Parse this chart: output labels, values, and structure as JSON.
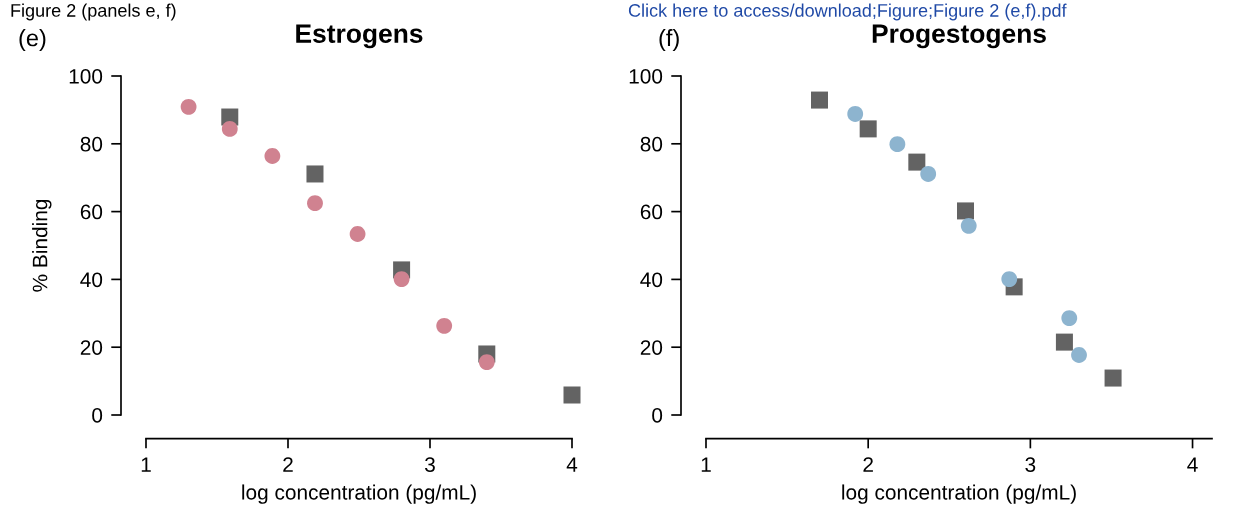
{
  "chart_data": [
    {
      "type": "scatter",
      "title": "Estrogens",
      "xlabel": "log concentration (pg/mL)",
      "ylabel": "% Binding",
      "annotations": [
        "(e)",
        "Figure 2 (panels e, f)"
      ],
      "xlim": [
        1,
        4
      ],
      "xticks": [
        1,
        2,
        3,
        4
      ],
      "ylim": [
        0,
        100
      ],
      "yticks": [
        0,
        20,
        40,
        60,
        80,
        100
      ],
      "grid": false,
      "legend": false,
      "series": [
        {
          "color": "#636363",
          "marker": "square",
          "x": [
            1.59,
            2.19,
            2.8,
            3.4,
            4.0
          ],
          "values": [
            87.9,
            71.1,
            42.8,
            18.0,
            5.9
          ]
        },
        {
          "color": "#d08290",
          "marker": "circle",
          "x": [
            1.3,
            1.59,
            1.89,
            2.19,
            2.49,
            2.8,
            3.1,
            3.4
          ],
          "values": [
            90.9,
            84.4,
            76.4,
            62.5,
            53.4,
            40.1,
            26.3,
            15.6
          ]
        }
      ]
    },
    {
      "type": "scatter",
      "title": "Progestogens",
      "xlabel": "log concentration (pg/mL)",
      "annotations": [
        "(f)",
        "Click here to access/download;Figure;Figure 2 (e,f).pdf"
      ],
      "xlim": [
        1,
        4.12
      ],
      "xticks": [
        1,
        2,
        3,
        4
      ],
      "ylim": [
        0,
        100
      ],
      "yticks": [
        0,
        20,
        40,
        60,
        80,
        100
      ],
      "grid": false,
      "legend": false,
      "series": [
        {
          "color": "#636363",
          "marker": "square",
          "x": [
            1.7,
            2.0,
            2.3,
            2.6,
            2.9,
            3.21,
            3.51
          ],
          "values": [
            92.9,
            84.4,
            74.6,
            60.2,
            37.8,
            21.5,
            10.9
          ]
        },
        {
          "color": "#8db4cf",
          "marker": "circle",
          "x": [
            1.92,
            2.18,
            2.37,
            2.62,
            2.87,
            3.24,
            3.3
          ],
          "values": [
            88.8,
            79.9,
            71.1,
            55.8,
            40.1,
            28.6,
            17.7
          ]
        }
      ]
    }
  ]
}
